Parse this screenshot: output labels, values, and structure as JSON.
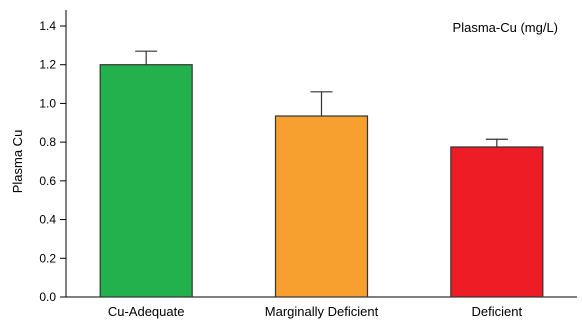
{
  "chart_data": {
    "type": "bar",
    "title": "",
    "xlabel": "",
    "ylabel": "Plasma Cu",
    "ylim": [
      0,
      1.4
    ],
    "yticks": [
      "0.0",
      "0.2",
      "0.4",
      "0.6",
      "0.8",
      "1.0",
      "1.2",
      "1.4"
    ],
    "categories": [
      "Cu-Adequate",
      "Marginally Deficient",
      "Deficient"
    ],
    "values": [
      1.2,
      0.935,
      0.775
    ],
    "error_upper": [
      0.07,
      0.125,
      0.04
    ],
    "bar_colors": [
      "#22b14c",
      "#f7a030",
      "#ee1c25"
    ],
    "legend_text": "Plasma-Cu (mg/L)",
    "legend_position": "top-right",
    "grid": false
  }
}
